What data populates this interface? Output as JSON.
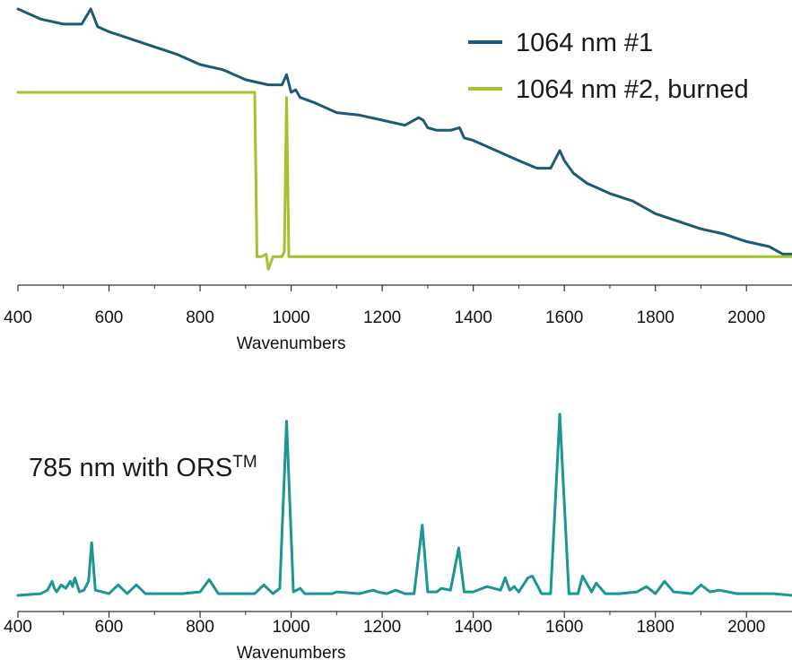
{
  "chart_data": [
    {
      "type": "line",
      "xlabel": "Wavenumbers",
      "ylabel": "",
      "xlim": [
        400,
        2100
      ],
      "xticks": [
        400,
        600,
        800,
        1000,
        1200,
        1400,
        1600,
        1800,
        2000
      ],
      "grid": false,
      "legend_position": "top-right",
      "series": [
        {
          "name": "1064 nm #1",
          "color": "#1c5a78",
          "x": [
            400,
            450,
            500,
            540,
            560,
            575,
            600,
            650,
            700,
            750,
            800,
            850,
            900,
            950,
            980,
            990,
            1000,
            1010,
            1020,
            1050,
            1100,
            1150,
            1200,
            1250,
            1280,
            1290,
            1300,
            1320,
            1350,
            1370,
            1380,
            1400,
            1450,
            1500,
            1540,
            1570,
            1590,
            1600,
            1620,
            1650,
            1700,
            1750,
            1800,
            1850,
            1900,
            1950,
            2000,
            2050,
            2080,
            2100
          ],
          "y": [
            100,
            96,
            94,
            94,
            100,
            93,
            91,
            88,
            85,
            82,
            78,
            76,
            72,
            70,
            70,
            74,
            67,
            68,
            65,
            63,
            59,
            58,
            56,
            54,
            57,
            56,
            53,
            52,
            52,
            53,
            49,
            48,
            44,
            40,
            37,
            37,
            44,
            40,
            35,
            31,
            27,
            24,
            19,
            16,
            13,
            11,
            8,
            6,
            3,
            3
          ]
        },
        {
          "name": "1064 nm #2, burned",
          "color": "#a3c22c",
          "x": [
            400,
            500,
            600,
            700,
            800,
            900,
            920,
            925,
            935,
            945,
            950,
            960,
            980,
            985,
            990,
            995,
            1000,
            1020,
            1100,
            1200,
            1300,
            1400,
            1500,
            1600,
            1700,
            1800,
            1900,
            2000,
            2100
          ],
          "y": [
            67,
            67,
            67,
            67,
            67,
            67,
            67,
            2,
            2,
            3,
            -3,
            2,
            2,
            4,
            65,
            2,
            2,
            2,
            2,
            2,
            2,
            2,
            2,
            2,
            2,
            2,
            2,
            2,
            2
          ]
        }
      ]
    },
    {
      "type": "line",
      "xlabel": "Wavenumbers",
      "ylabel": "",
      "xlim": [
        400,
        2100
      ],
      "xticks": [
        400,
        600,
        800,
        1000,
        1200,
        1400,
        1600,
        1800,
        2000
      ],
      "grid": false,
      "annotation": "785 nm with ORS™",
      "series": [
        {
          "color": "#1b9690",
          "x": [
            400,
            450,
            465,
            475,
            480,
            485,
            495,
            505,
            515,
            520,
            525,
            535,
            545,
            555,
            562,
            570,
            585,
            600,
            620,
            640,
            660,
            680,
            720,
            760,
            800,
            820,
            840,
            880,
            920,
            940,
            960,
            975,
            990,
            1005,
            1020,
            1030,
            1060,
            1090,
            1100,
            1150,
            1180,
            1190,
            1210,
            1230,
            1250,
            1270,
            1288,
            1300,
            1320,
            1330,
            1350,
            1368,
            1380,
            1400,
            1430,
            1460,
            1470,
            1480,
            1490,
            1500,
            1520,
            1530,
            1550,
            1570,
            1590,
            1610,
            1630,
            1640,
            1660,
            1670,
            1690,
            1720,
            1760,
            1780,
            1800,
            1820,
            1840,
            1880,
            1900,
            1920,
            1940,
            1980,
            2020,
            2060,
            2100
          ],
          "y": [
            1,
            2,
            4,
            9,
            5,
            3,
            7,
            5,
            9,
            6,
            11,
            3,
            4,
            9,
            31,
            4,
            3,
            2,
            7,
            2,
            7,
            2,
            2,
            2,
            3,
            10,
            2,
            2,
            2,
            7,
            2,
            5,
            100,
            3,
            5,
            2,
            2,
            2,
            3,
            2,
            4,
            3,
            2,
            4,
            2,
            2,
            41,
            3,
            3,
            5,
            4,
            28,
            3,
            3,
            6,
            4,
            11,
            4,
            6,
            3,
            11,
            12,
            2,
            2,
            104,
            2,
            2,
            12,
            3,
            8,
            2,
            2,
            3,
            6,
            2,
            9,
            3,
            2,
            7,
            3,
            4,
            2,
            2,
            2,
            1
          ]
        }
      ]
    }
  ]
}
